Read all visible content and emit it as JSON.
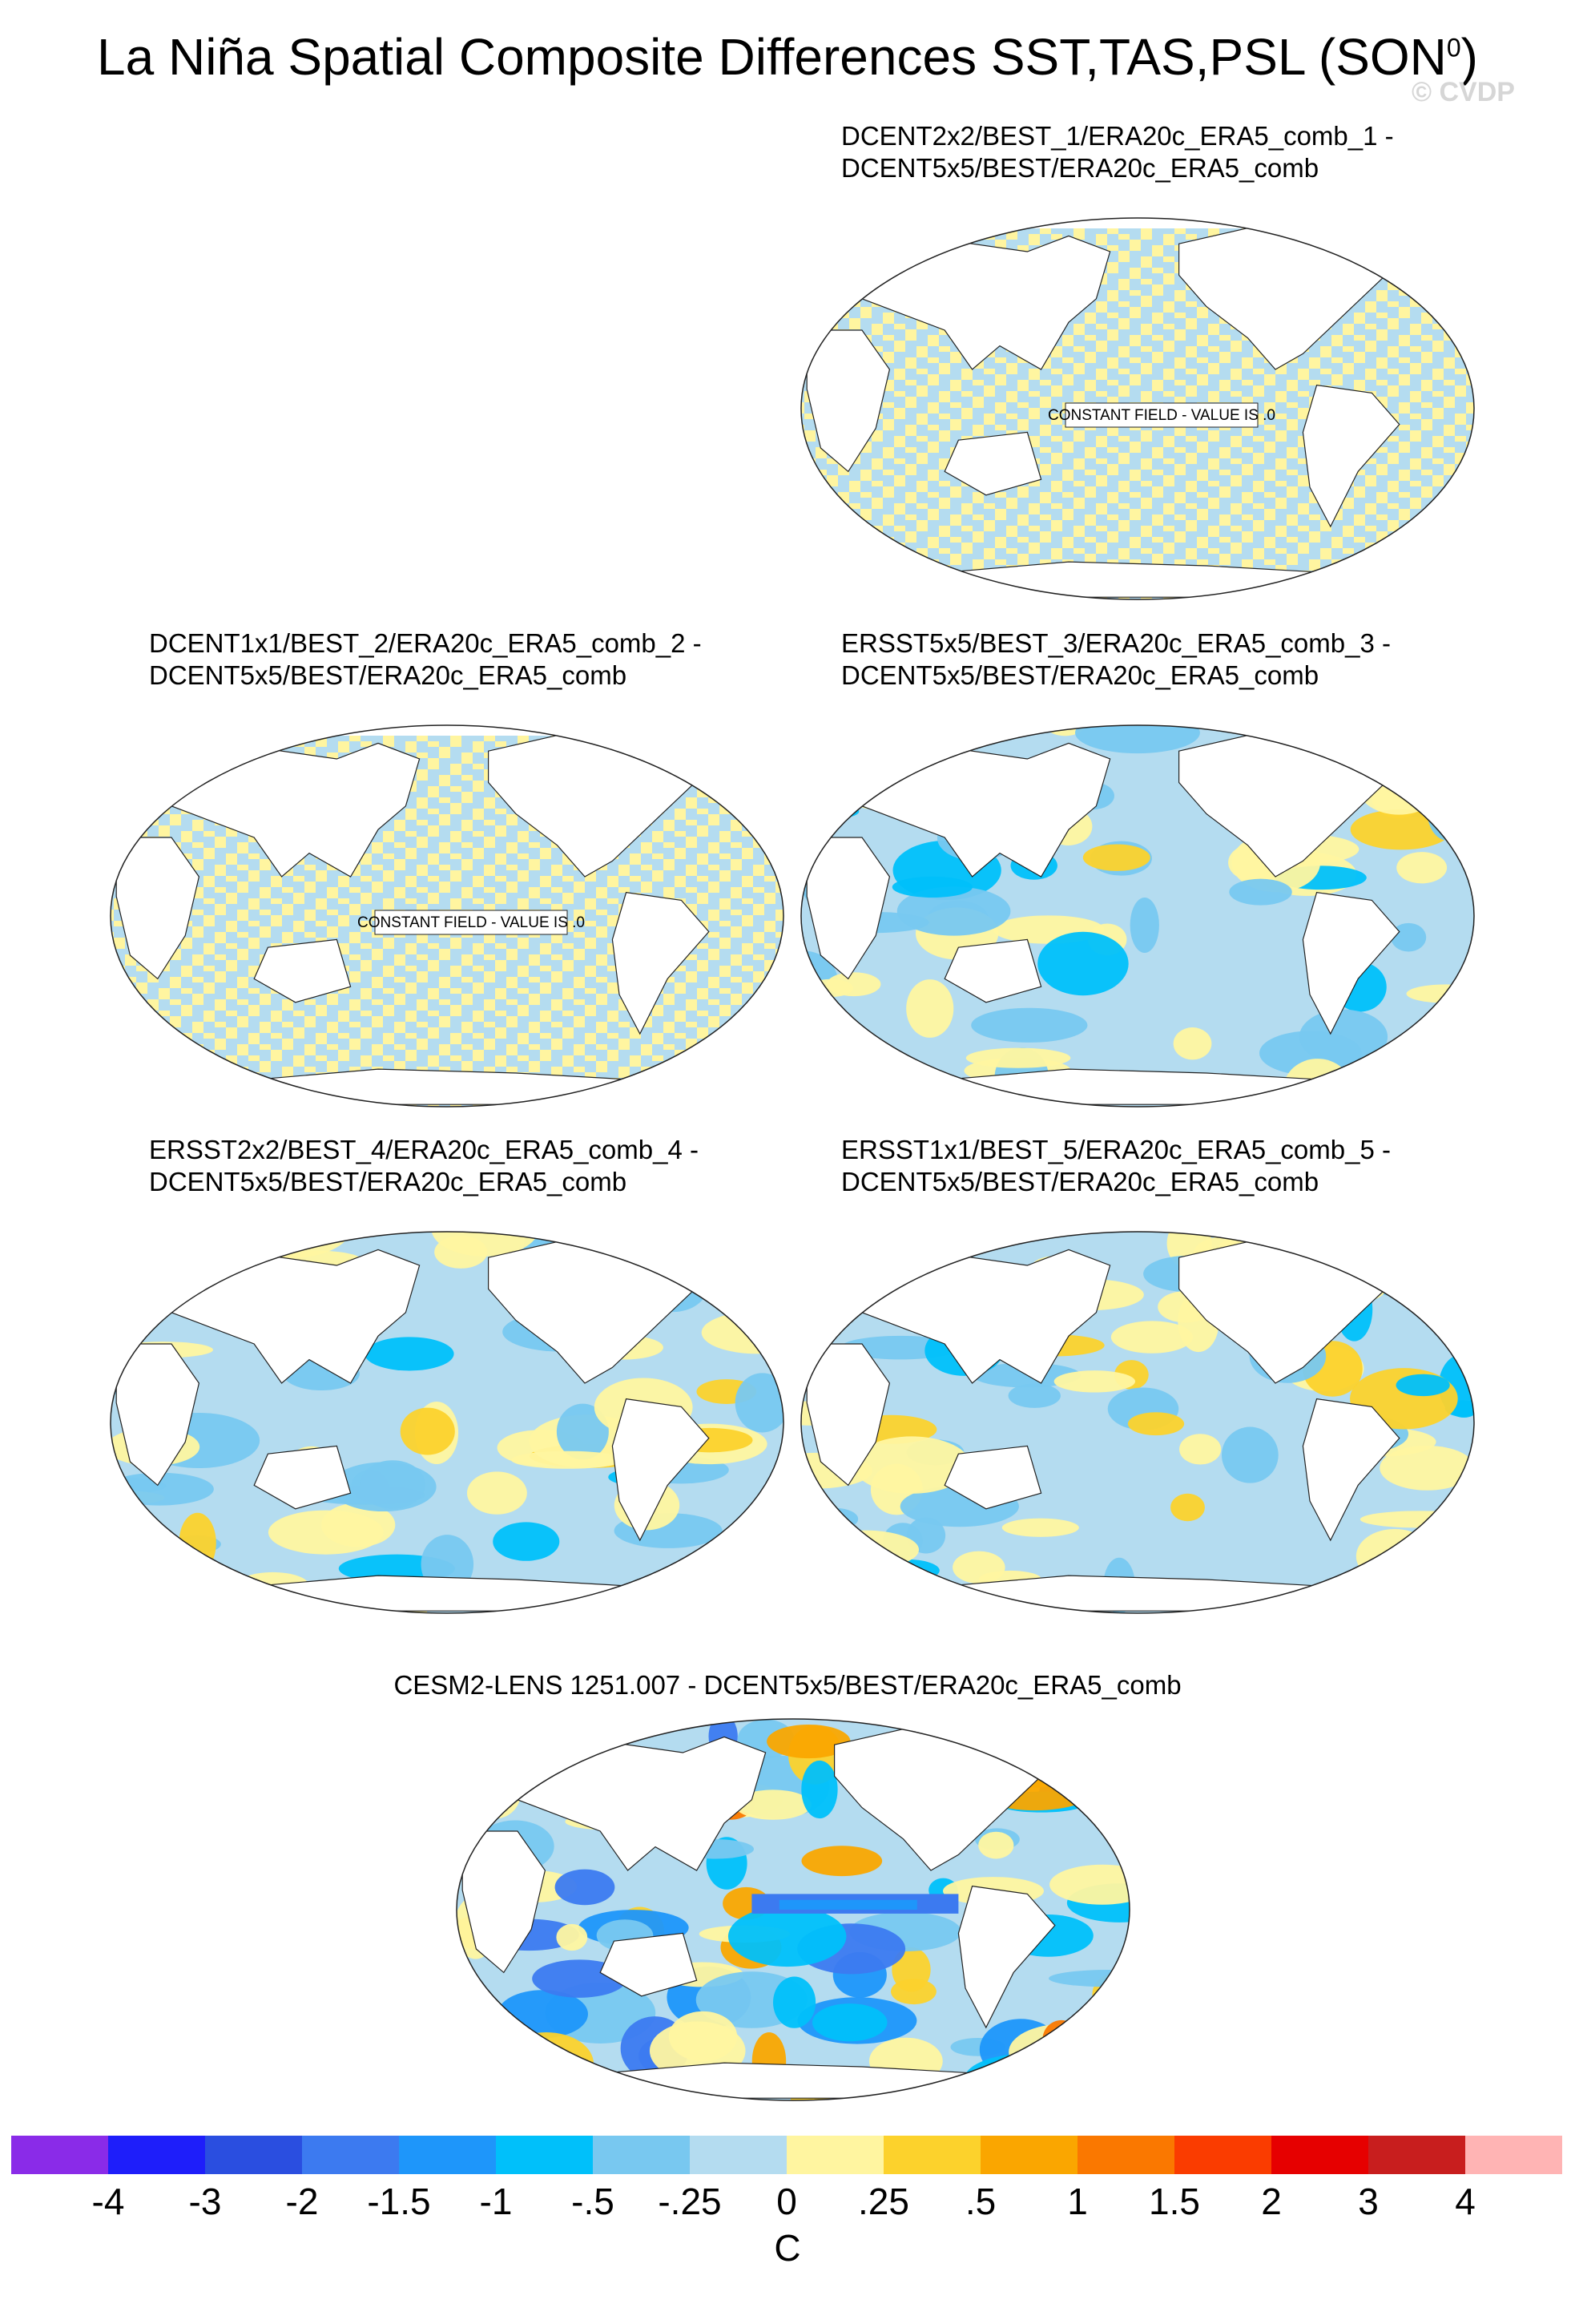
{
  "title": {
    "text": "La Niña Spatial Composite Differences SST,TAS,PSL (SON",
    "superscript": "0",
    "close": ")"
  },
  "watermark": "© CVDP",
  "panels": [
    {
      "line1": "DCENT2x2/BEST_1/ERA20c_ERA5_comb_1 -",
      "line2": "DCENT5x5/BEST/ERA20c_ERA5_comb",
      "note": "CONSTANT FIELD - VALUE IS .0",
      "field_type": "constant-zero"
    },
    {
      "line1": "DCENT1x1/BEST_2/ERA20c_ERA5_comb_2 -",
      "line2": "DCENT5x5/BEST/ERA20c_ERA5_comb",
      "note": "CONSTANT FIELD - VALUE IS .0",
      "field_type": "constant-zero"
    },
    {
      "line1": "ERSST5x5/BEST_3/ERA20c_ERA5_comb_3 -",
      "line2": "DCENT5x5/BEST/ERA20c_ERA5_comb",
      "field_type": "anomaly"
    },
    {
      "line1": "ERSST2x2/BEST_4/ERA20c_ERA5_comb_4 -",
      "line2": "DCENT5x5/BEST/ERA20c_ERA5_comb",
      "field_type": "anomaly"
    },
    {
      "line1": "ERSST1x1/BEST_5/ERA20c_ERA5_comb_5 -",
      "line2": "DCENT5x5/BEST/ERA20c_ERA5_comb",
      "field_type": "anomaly"
    },
    {
      "line1": "CESM2-LENS 1251.007 - DCENT5x5/BEST/ERA20c_ERA5_comb",
      "line2": "",
      "field_type": "anomaly-strong"
    }
  ],
  "colorbar": {
    "colors": [
      "#8a2be8",
      "#1e1efa",
      "#2a4ee0",
      "#3c7af0",
      "#1e96fa",
      "#00c0fa",
      "#78c8f0",
      "#b4dcf0",
      "#fff5a0",
      "#fcd22c",
      "#faa600",
      "#fa7800",
      "#fa3c00",
      "#e60000",
      "#c81e1e",
      "#ffb4b4"
    ],
    "ticks": [
      "-4",
      "-3",
      "-2",
      "-1.5",
      "-1",
      "-.5",
      "-.25",
      "0",
      ".25",
      ".5",
      "1",
      "1.5",
      "2",
      "3",
      "4"
    ],
    "units": "C"
  }
}
